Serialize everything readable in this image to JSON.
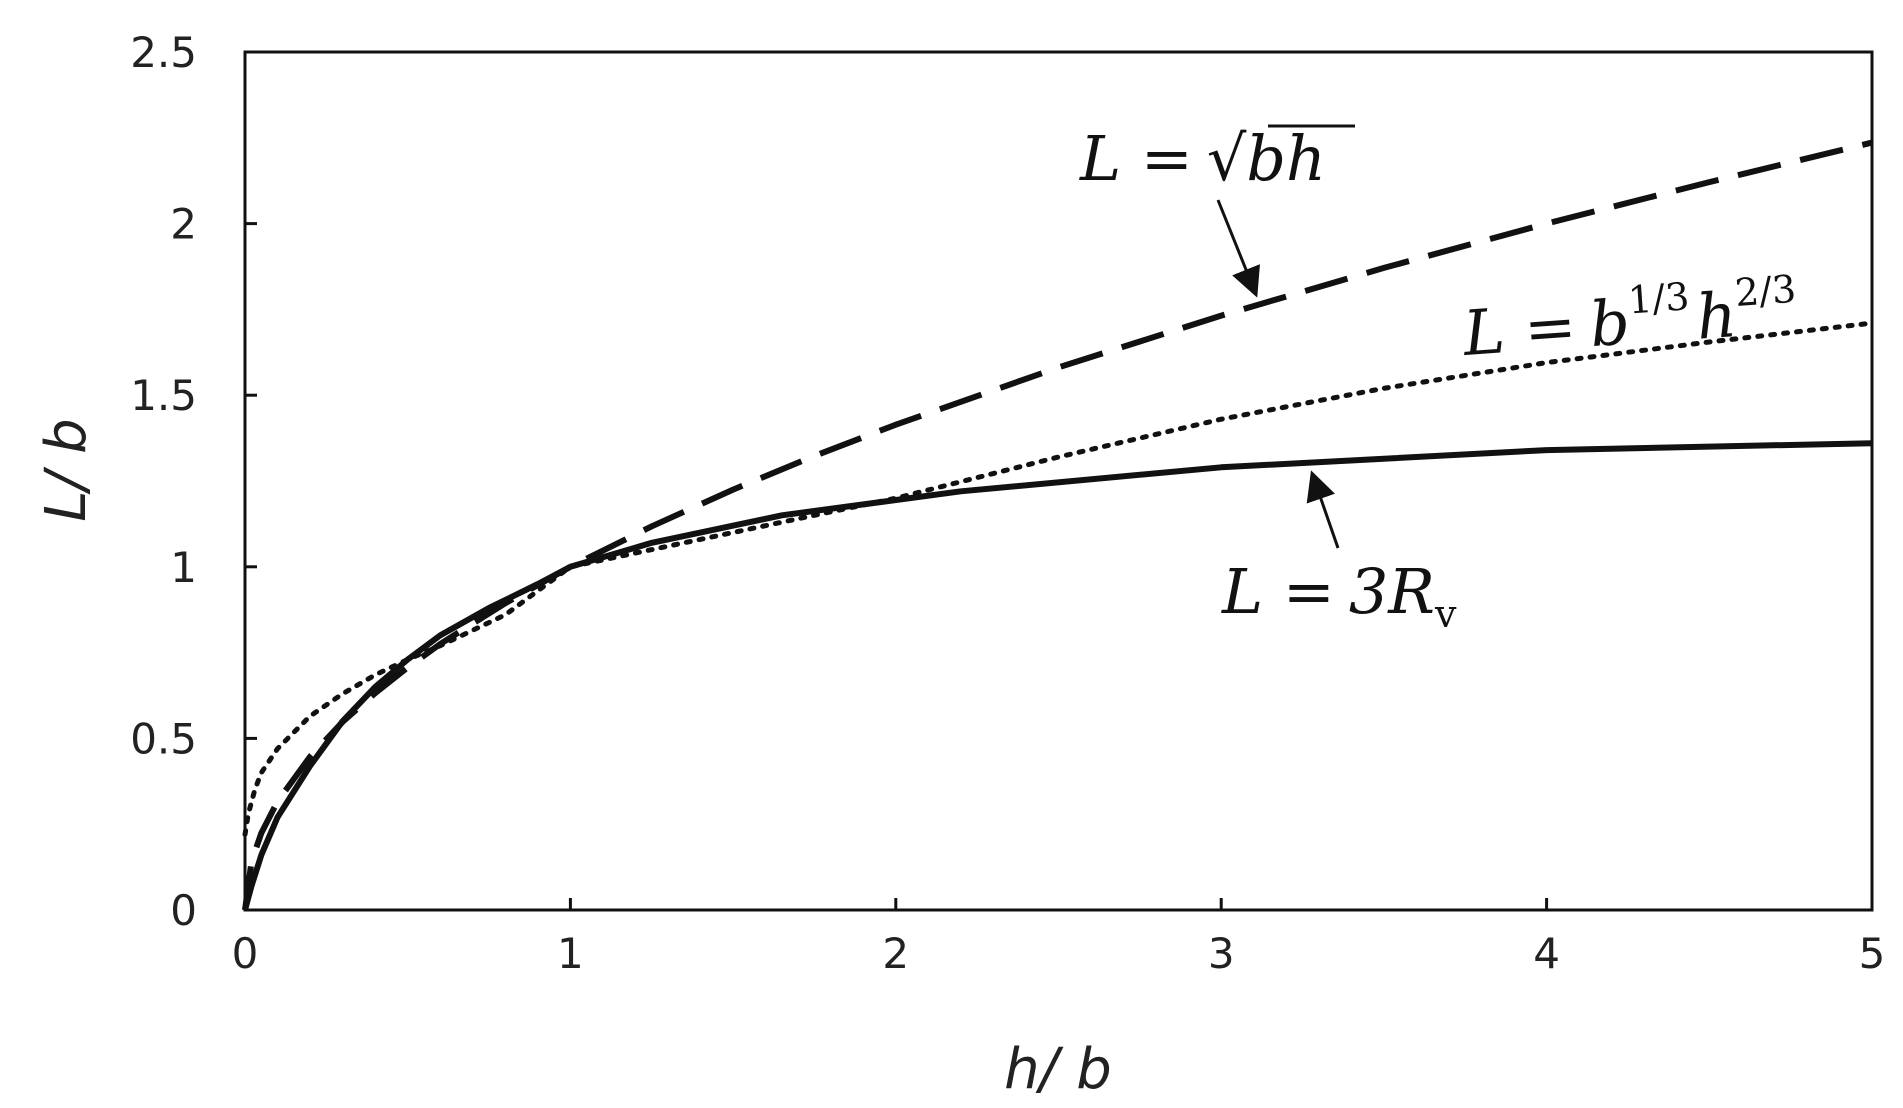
{
  "chart_data": {
    "type": "line",
    "title": "",
    "xlabel": "h/ b",
    "ylabel": "L/ b",
    "xlim": [
      0,
      5
    ],
    "ylim": [
      0,
      2.5
    ],
    "xticks": [
      "0",
      "1",
      "2",
      "3",
      "4",
      "5"
    ],
    "yticks": [
      "0",
      "0.5",
      "1",
      "1.5",
      "2",
      "2.5"
    ],
    "grid": false,
    "series": [
      {
        "style": "dashed",
        "color": "#111111",
        "x": [
          0,
          0.02,
          0.05,
          0.1,
          0.2,
          0.3,
          0.4,
          0.5,
          0.6,
          0.8,
          1.0,
          1.25,
          1.5,
          1.75,
          2.0,
          2.5,
          3.0,
          3.5,
          4.0,
          4.5,
          5.0
        ],
        "y": [
          0,
          0.141,
          0.224,
          0.316,
          0.447,
          0.548,
          0.632,
          0.707,
          0.775,
          0.894,
          1.0,
          1.118,
          1.225,
          1.323,
          1.414,
          1.581,
          1.732,
          1.871,
          2.0,
          2.121,
          2.236
        ]
      },
      {
        "style": "dotted",
        "color": "#111111",
        "x": [
          0,
          0.01,
          0.03,
          0.05,
          0.1,
          0.2,
          0.3,
          0.4,
          0.5,
          0.6,
          0.8,
          1.0,
          1.25,
          1.5,
          1.75,
          2.0,
          2.5,
          3.0,
          3.5,
          4.0,
          4.5,
          5.0
        ],
        "y": [
          0.22,
          0.28,
          0.35,
          0.4,
          0.47,
          0.565,
          0.63,
          0.685,
          0.73,
          0.77,
          0.86,
          1.0,
          1.05,
          1.1,
          1.15,
          1.2,
          1.32,
          1.43,
          1.52,
          1.595,
          1.655,
          1.71
        ]
      },
      {
        "style": "solid",
        "color": "#111111",
        "x": [
          0,
          0.02,
          0.05,
          0.1,
          0.2,
          0.3,
          0.4,
          0.5,
          0.6,
          0.75,
          0.9,
          1.0,
          1.25,
          1.65,
          2.2,
          3.0,
          4.0,
          5.0
        ],
        "y": [
          0,
          0.07,
          0.16,
          0.27,
          0.42,
          0.55,
          0.65,
          0.73,
          0.8,
          0.88,
          0.95,
          1.0,
          1.07,
          1.15,
          1.22,
          1.29,
          1.34,
          1.36
        ]
      }
    ],
    "annotations": [
      {
        "lhs": "L =",
        "rhs": "bh",
        "radical": "√",
        "target": [
          3.1,
          1.77
        ]
      },
      {
        "lhs": "L =",
        "base1": "b",
        "exp1": "1/3",
        "base2": "h",
        "exp2": "2/3"
      },
      {
        "lhs": "L =",
        "rhs": "3R",
        "sub": "v",
        "target": [
          3.25,
          1.29
        ]
      }
    ]
  }
}
